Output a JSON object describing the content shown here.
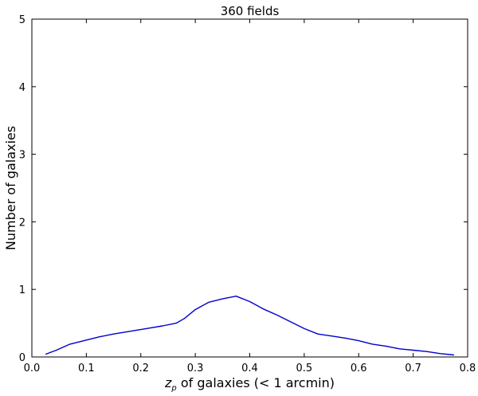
{
  "chart_data": {
    "type": "line",
    "title": "360 fields",
    "xlabel": {
      "var": "z",
      "sub": "p",
      "rest": " of galaxies (< 1 arcmin)"
    },
    "ylabel": "Number of galaxies",
    "xlim": [
      0.0,
      0.8
    ],
    "ylim": [
      0,
      5
    ],
    "xticks": [
      0.0,
      0.1,
      0.2,
      0.3,
      0.4,
      0.5,
      0.6,
      0.7,
      0.8
    ],
    "xtick_labels": [
      "0.0",
      "0.1",
      "0.2",
      "0.3",
      "0.4",
      "0.5",
      "0.6",
      "0.7",
      "0.8"
    ],
    "yticks": [
      0,
      1,
      2,
      3,
      4,
      5
    ],
    "ytick_labels": [
      "0",
      "1",
      "2",
      "3",
      "4",
      "5"
    ],
    "grid": false,
    "series": [
      {
        "color": "#0000cc",
        "x": [
          0.025,
          0.045,
          0.07,
          0.1,
          0.125,
          0.15,
          0.18,
          0.21,
          0.24,
          0.265,
          0.28,
          0.3,
          0.325,
          0.35,
          0.375,
          0.4,
          0.425,
          0.45,
          0.475,
          0.5,
          0.525,
          0.55,
          0.575,
          0.6,
          0.625,
          0.65,
          0.675,
          0.7,
          0.725,
          0.75,
          0.775
        ],
        "y": [
          0.04,
          0.1,
          0.19,
          0.25,
          0.3,
          0.34,
          0.38,
          0.42,
          0.46,
          0.5,
          0.57,
          0.7,
          0.81,
          0.86,
          0.9,
          0.82,
          0.71,
          0.62,
          0.52,
          0.42,
          0.34,
          0.31,
          0.28,
          0.24,
          0.19,
          0.16,
          0.12,
          0.1,
          0.08,
          0.05,
          0.03
        ]
      }
    ]
  }
}
